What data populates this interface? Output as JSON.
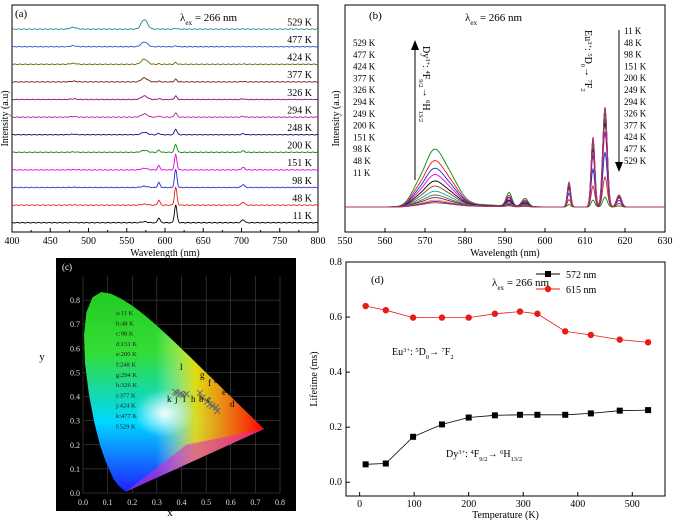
{
  "chart_data": [
    {
      "panel": "(a)",
      "type": "line",
      "title": "λex = 266 nm",
      "annotation": "λex = 266 nm",
      "xlabel": "Wavelength (nm)",
      "ylabel": "Intensity (a.u)",
      "xlim": [
        400,
        800
      ],
      "xticks": [
        400,
        450,
        500,
        550,
        600,
        650,
        700,
        750,
        800
      ],
      "series": [
        {
          "name": "11 K",
          "color": "#000000",
          "peak615": 1.0,
          "peak572": 0.06
        },
        {
          "name": "48 K",
          "color": "#e81b1b",
          "peak615": 1.0,
          "peak572": 0.06
        },
        {
          "name": "98 K",
          "color": "#1f2bd6",
          "peak615": 1.0,
          "peak572": 0.08
        },
        {
          "name": "151 K",
          "color": "#e400e4",
          "peak615": 0.85,
          "peak572": 0.1
        },
        {
          "name": "200 K",
          "color": "#0b8a0b",
          "peak615": 0.45,
          "peak572": 0.12
        },
        {
          "name": "248 K",
          "color": "#121280",
          "peak615": 0.32,
          "peak572": 0.15
        },
        {
          "name": "294 K",
          "color": "#b01cb0",
          "peak615": 0.25,
          "peak572": 0.2
        },
        {
          "name": "326 K",
          "color": "#8b008b",
          "peak615": 0.2,
          "peak572": 0.22
        },
        {
          "name": "377 K",
          "color": "#7a1414",
          "peak615": 0.15,
          "peak572": 0.25
        },
        {
          "name": "424 K",
          "color": "#6b6b00",
          "peak615": 0.1,
          "peak572": 0.32
        },
        {
          "name": "477 K",
          "color": "#3355cc",
          "peak615": 0.05,
          "peak572": 0.3
        },
        {
          "name": "529 K",
          "color": "#1a8a8a",
          "peak615": 0.04,
          "peak572": 0.6
        }
      ]
    },
    {
      "panel": "(b)",
      "type": "line",
      "annotation": "λex = 266 nm",
      "xlabel": "Wavelength (nm)",
      "ylabel": "Intensity (a.u)",
      "xlim": [
        550,
        630
      ],
      "xticks": [
        550,
        560,
        570,
        580,
        590,
        600,
        610,
        620,
        630
      ],
      "arrow_left_labels": [
        "529 K",
        "477 K",
        "424 K",
        "377 K",
        "326 K",
        "294 K",
        "249 K",
        "200 K",
        "151 K",
        "98 K",
        "48 K",
        "11 K"
      ],
      "arrow_right_labels": [
        "11 K",
        "48 K",
        "98 K",
        "151 K",
        "200 K",
        "249 K",
        "294 K",
        "326 K",
        "377 K",
        "424 K",
        "477 K",
        "529 K"
      ],
      "dy_transition": "Dy3+: 4F9/2 → 6H13/2",
      "eu_transition": "Eu3+: 5D0 → 7F2",
      "series": [
        {
          "name": "529 K",
          "color": "#0b8a0b",
          "dy": 0.45,
          "eu": 0.1
        },
        {
          "name": "477 K",
          "color": "#e81b1b",
          "dy": 0.36,
          "eu": 0.3
        },
        {
          "name": "424 K",
          "color": "#1f2bd6",
          "dy": 0.3,
          "eu": 0.55
        },
        {
          "name": "377 K",
          "color": "#e400e4",
          "dy": 0.25,
          "eu": 0.75
        },
        {
          "name": "326 K",
          "color": "#000000",
          "dy": 0.2,
          "eu": 0.85
        },
        {
          "name": "294 K",
          "color": "#8b4513",
          "dy": 0.16,
          "eu": 0.9
        },
        {
          "name": "249 K",
          "color": "#00aaaa",
          "dy": 0.12,
          "eu": 0.95
        },
        {
          "name": "200 K",
          "color": "#6b6b00",
          "dy": 0.09,
          "eu": 0.98
        },
        {
          "name": "151 K",
          "color": "#6a0dad",
          "dy": 0.07,
          "eu": 1.0
        },
        {
          "name": "98 K",
          "color": "#ff8c00",
          "dy": 0.05,
          "eu": 1.0
        },
        {
          "name": "48 K",
          "color": "#444499",
          "dy": 0.04,
          "eu": 1.0
        },
        {
          "name": "11 K",
          "color": "#aa3366",
          "dy": 0.03,
          "eu": 1.0
        }
      ]
    },
    {
      "panel": "(c)",
      "type": "scatter",
      "xlabel": "x",
      "ylabel": "y",
      "xticks": [
        0.0,
        0.1,
        0.2,
        0.3,
        0.4,
        0.5,
        0.6,
        0.7,
        0.8
      ],
      "yticks": [
        0.0,
        0.1,
        0.2,
        0.3,
        0.4,
        0.5,
        0.6,
        0.7,
        0.8
      ],
      "xlim": [
        0.0,
        0.8
      ],
      "ylim": [
        0.0,
        0.9
      ],
      "legend": [
        "a:11 K",
        "b:48 K",
        "c:98 K",
        "d:151 K",
        "e:200 K",
        "f:248 K",
        "g:294 K",
        "h:326 K",
        "i:377 K",
        "j:424 K",
        "k:477 K",
        "l:529 K"
      ],
      "points": [
        {
          "label": "a",
          "x": 0.54,
          "y": 0.355
        },
        {
          "label": "b",
          "x": 0.515,
          "y": 0.368
        },
        {
          "label": "c",
          "x": 0.525,
          "y": 0.362
        },
        {
          "label": "d",
          "x": 0.545,
          "y": 0.34
        },
        {
          "label": "e",
          "x": 0.505,
          "y": 0.38
        },
        {
          "label": "f",
          "x": 0.485,
          "y": 0.395
        },
        {
          "label": "g",
          "x": 0.475,
          "y": 0.415
        },
        {
          "label": "h",
          "x": 0.42,
          "y": 0.41
        },
        {
          "label": "i",
          "x": 0.405,
          "y": 0.408
        },
        {
          "label": "j",
          "x": 0.395,
          "y": 0.41
        },
        {
          "label": "k",
          "x": 0.38,
          "y": 0.415
        },
        {
          "label": "l",
          "x": 0.375,
          "y": 0.42
        }
      ],
      "point_labels_upper": [
        "l",
        "g",
        "f"
      ],
      "point_labels_right": [
        "a",
        "e",
        "d"
      ],
      "point_labels_lower": [
        "k",
        "j",
        "i",
        "h",
        "b",
        "c"
      ]
    },
    {
      "panel": "(d)",
      "type": "line",
      "annotation": "λex = 266 nm",
      "xlabel": "Temperature (K)",
      "ylabel": "Lifetime (ms)",
      "xlim": [
        -25,
        560
      ],
      "ylim": [
        -0.05,
        0.8
      ],
      "xticks": [
        0,
        100,
        200,
        300,
        400,
        500
      ],
      "yticks": [
        0.0,
        0.2,
        0.4,
        0.6,
        0.8
      ],
      "eu_text": "Eu3+: 5D0 → 7F2",
      "dy_text": "Dy3+: 4F9/2 → 6H13/2",
      "series": [
        {
          "name": "572 nm",
          "color": "#000000",
          "marker": "square",
          "x": [
            11,
            48,
            98,
            151,
            200,
            248,
            294,
            326,
            377,
            424,
            477,
            529
          ],
          "y": [
            0.065,
            0.068,
            0.165,
            0.21,
            0.235,
            0.243,
            0.245,
            0.245,
            0.245,
            0.25,
            0.26,
            0.262
          ]
        },
        {
          "name": "615 nm",
          "color": "#e81b1b",
          "marker": "circle",
          "x": [
            11,
            48,
            98,
            151,
            200,
            248,
            294,
            326,
            377,
            424,
            477,
            529
          ],
          "y": [
            0.64,
            0.625,
            0.598,
            0.598,
            0.598,
            0.612,
            0.62,
            0.612,
            0.548,
            0.535,
            0.518,
            0.508
          ]
        }
      ]
    }
  ]
}
